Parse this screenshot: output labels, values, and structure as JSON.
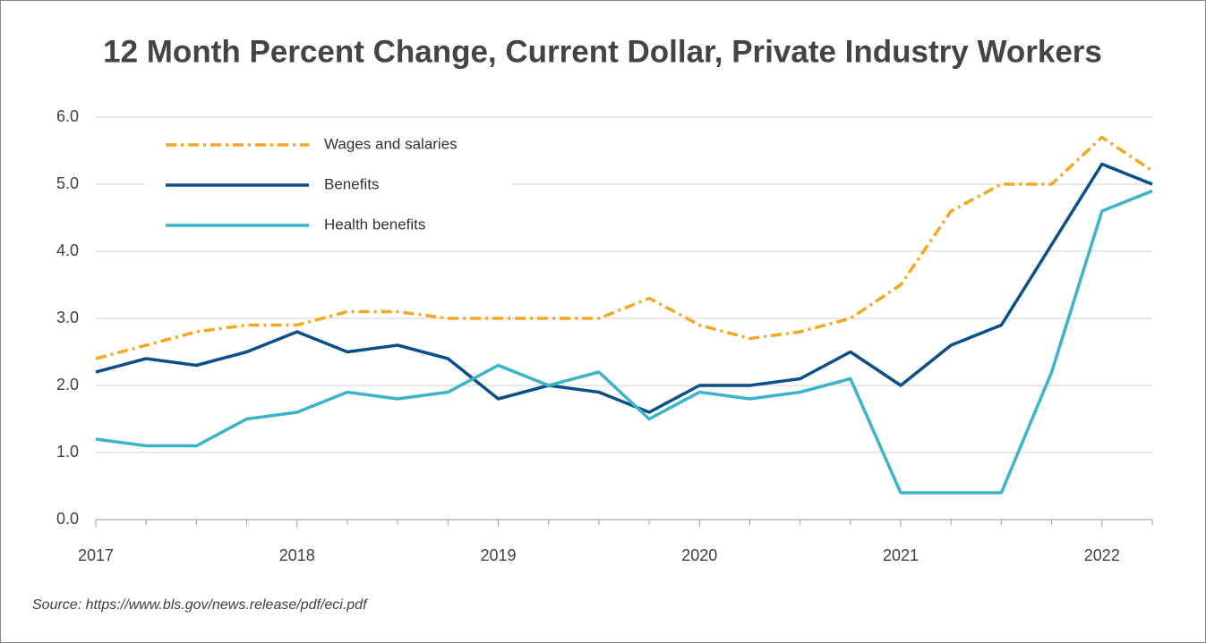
{
  "chart_data": {
    "type": "line",
    "title": "12 Month Percent Change, Current Dollar, Private Industry Workers",
    "source": "Source: https://www.bls.gov/news.release/pdf/eci.pdf",
    "categories": [
      "2017",
      null,
      null,
      null,
      "2018",
      null,
      null,
      null,
      "2019",
      null,
      null,
      null,
      "2020",
      null,
      null,
      null,
      "2021",
      null,
      null,
      null,
      "2022",
      null
    ],
    "series": [
      {
        "name": "Wages and salaries",
        "color": "#f5a623",
        "linestyle": "dashdot",
        "values": [
          2.4,
          2.6,
          2.8,
          2.9,
          2.9,
          3.1,
          3.1,
          3.0,
          3.0,
          3.0,
          3.0,
          3.3,
          2.9,
          2.7,
          2.8,
          3.0,
          3.5,
          4.6,
          5.0,
          5.0,
          5.7,
          5.2
        ]
      },
      {
        "name": "Benefits",
        "color": "#0b4f8a",
        "linestyle": "solid",
        "values": [
          2.2,
          2.4,
          2.3,
          2.5,
          2.8,
          2.5,
          2.6,
          2.4,
          1.8,
          2.0,
          1.9,
          1.6,
          2.0,
          2.0,
          2.1,
          2.5,
          2.0,
          2.6,
          2.9,
          4.1,
          5.3,
          5.0
        ]
      },
      {
        "name": "Health benefits",
        "color": "#3bb3c8",
        "linestyle": "solid",
        "values": [
          1.2,
          1.1,
          1.1,
          1.5,
          1.6,
          1.9,
          1.8,
          1.9,
          2.3,
          2.0,
          2.2,
          1.5,
          1.9,
          1.8,
          1.9,
          2.1,
          0.4,
          0.4,
          0.4,
          2.2,
          4.6,
          4.9
        ]
      }
    ],
    "ylim": [
      0,
      6
    ],
    "yticks": [
      {
        "value": 0,
        "label": "0.0"
      },
      {
        "value": 1,
        "label": "1.0"
      },
      {
        "value": 2,
        "label": "2.0"
      },
      {
        "value": 3,
        "label": "3.0"
      },
      {
        "value": 4,
        "label": "4.0"
      },
      {
        "value": 5,
        "label": "5.0"
      },
      {
        "value": 6,
        "label": "6.0"
      }
    ],
    "grid": true,
    "legend": "upper left"
  }
}
